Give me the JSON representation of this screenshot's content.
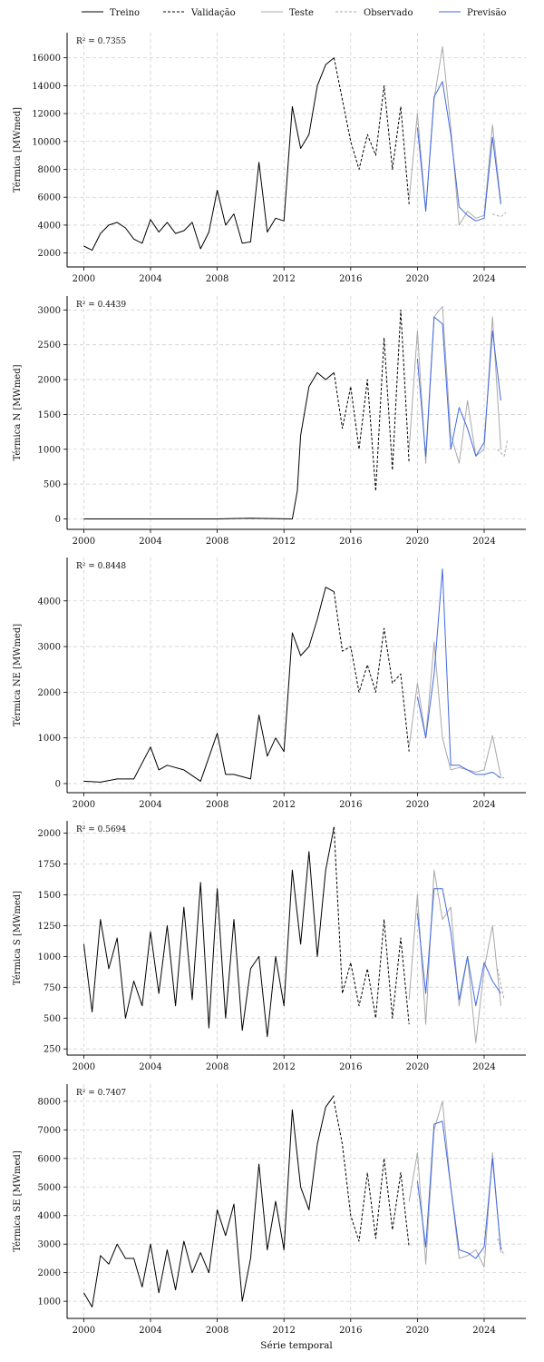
{
  "figure": {
    "xlabel": "Série temporal",
    "legend": [
      {
        "label": "Treino",
        "color": "#000000",
        "dash": "solid",
        "width": 1.0
      },
      {
        "label": "Validação",
        "color": "#000000",
        "dash": "dashed",
        "width": 1.0
      },
      {
        "label": "Teste",
        "color": "#a9a9a9",
        "dash": "solid",
        "width": 1.0
      },
      {
        "label": "Observado",
        "color": "#a9a9a9",
        "dash": "dashed",
        "width": 1.0
      },
      {
        "label": "Previsão",
        "color": "#4169e1",
        "dash": "solid",
        "width": 1.0
      }
    ],
    "legend_placement": "top-center",
    "grid": true,
    "xlim": [
      1999,
      2026.5
    ]
  },
  "chart_data": [
    {
      "type": "line",
      "ylabel": "Térmica [MWmed]",
      "annotation": "R² = 0.7355",
      "ylim": [
        1000,
        17800
      ],
      "yticks": [
        2000,
        4000,
        6000,
        8000,
        10000,
        12000,
        14000,
        16000
      ],
      "xticks": [
        2000,
        2004,
        2008,
        2012,
        2016,
        2020,
        2024
      ],
      "series": [
        {
          "name": "Treino",
          "x": [
            2000,
            2000.5,
            2001,
            2001.5,
            2002,
            2002.5,
            2003,
            2003.5,
            2004,
            2004.5,
            2005,
            2005.5,
            2006,
            2006.5,
            2007,
            2007.5,
            2008,
            2008.5,
            2009,
            2009.5,
            2010,
            2010.5,
            2011,
            2011.5,
            2012,
            2012.5,
            2013,
            2013.5,
            2014,
            2014.5,
            2015
          ],
          "y": [
            2500,
            2200,
            3400,
            4000,
            4200,
            3800,
            3000,
            2700,
            4400,
            3500,
            4200,
            3400,
            3600,
            4200,
            2300,
            3500,
            6500,
            4000,
            4800,
            2700,
            2800,
            8500,
            3500,
            4500,
            4300,
            12500,
            9500,
            10500,
            14000,
            15500,
            16000
          ]
        },
        {
          "name": "Validação",
          "x": [
            2015,
            2015.5,
            2016,
            2016.5,
            2017,
            2017.5,
            2018,
            2018.5,
            2019,
            2019.5
          ],
          "y": [
            16000,
            13000,
            10000,
            8000,
            10500,
            9000,
            14000,
            8000,
            12500,
            5500
          ]
        },
        {
          "name": "Teste",
          "x": [
            2019.5,
            2020,
            2020.5,
            2021,
            2021.5,
            2022,
            2022.5,
            2023,
            2023.5,
            2024,
            2024.5,
            2025
          ],
          "y": [
            5800,
            12000,
            5000,
            13000,
            16800,
            11000,
            4000,
            5000,
            4500,
            4700,
            11200,
            5600
          ]
        },
        {
          "name": "Observado",
          "x": [
            2024.5,
            2025,
            2025.3
          ],
          "y": [
            4800,
            4600,
            4900
          ]
        },
        {
          "name": "Previsão",
          "x": [
            2020,
            2020.5,
            2021,
            2021.5,
            2022,
            2022.5,
            2023,
            2023.5,
            2024,
            2024.5,
            2025
          ],
          "y": [
            11000,
            5000,
            13200,
            14300,
            10500,
            5300,
            4700,
            4300,
            4500,
            10300,
            5500
          ]
        }
      ]
    },
    {
      "type": "line",
      "ylabel": "Térmica N [MWmed]",
      "annotation": "R² = 0.4439",
      "ylim": [
        -150,
        3200
      ],
      "yticks": [
        0,
        500,
        1000,
        1500,
        2000,
        2500,
        3000
      ],
      "xticks": [
        2000,
        2004,
        2008,
        2012,
        2016,
        2020,
        2024
      ],
      "series": [
        {
          "name": "Treino",
          "x": [
            2000,
            2004,
            2008,
            2010,
            2012.5,
            2012.8,
            2013,
            2013.5,
            2014,
            2014.5,
            2015
          ],
          "y": [
            0,
            0,
            0,
            10,
            0,
            400,
            1200,
            1900,
            2100,
            2000,
            2100
          ]
        },
        {
          "name": "Validação",
          "x": [
            2015,
            2015.5,
            2016,
            2016.5,
            2017,
            2017.5,
            2018,
            2018.5,
            2019,
            2019.5
          ],
          "y": [
            2100,
            1300,
            1900,
            1000,
            2000,
            400,
            2600,
            700,
            3000,
            800
          ]
        },
        {
          "name": "Teste",
          "x": [
            2019.5,
            2020,
            2020.5,
            2021,
            2021.5,
            2022,
            2022.5,
            2023,
            2023.5,
            2024,
            2024.5,
            2025
          ],
          "y": [
            1000,
            2700,
            800,
            2900,
            3050,
            1200,
            800,
            1700,
            900,
            1000,
            2900,
            1000
          ]
        },
        {
          "name": "Observado",
          "x": [
            2024.8,
            2025.2,
            2025.4
          ],
          "y": [
            1000,
            900,
            1150
          ]
        },
        {
          "name": "Previsão",
          "x": [
            2020,
            2020.5,
            2021,
            2021.5,
            2022,
            2022.5,
            2023,
            2023.5,
            2024,
            2024.5,
            2025
          ],
          "y": [
            2300,
            900,
            2900,
            2800,
            1000,
            1600,
            1300,
            900,
            1100,
            2700,
            1700
          ]
        }
      ]
    },
    {
      "type": "line",
      "ylabel": "Térmica NE [MWmed]",
      "annotation": "R² = 0.8448",
      "ylim": [
        -200,
        4950
      ],
      "yticks": [
        0,
        1000,
        2000,
        3000,
        4000
      ],
      "xticks": [
        2000,
        2004,
        2008,
        2012,
        2016,
        2020,
        2024
      ],
      "series": [
        {
          "name": "Treino",
          "x": [
            2000,
            2001,
            2002,
            2003,
            2004,
            2004.5,
            2005,
            2006,
            2007,
            2008,
            2008.5,
            2009,
            2010,
            2010.5,
            2011,
            2011.5,
            2012,
            2012.5,
            2013,
            2013.5,
            2014,
            2014.5,
            2015
          ],
          "y": [
            50,
            30,
            100,
            100,
            800,
            300,
            400,
            300,
            50,
            1100,
            200,
            200,
            100,
            1500,
            600,
            1000,
            700,
            3300,
            2800,
            3000,
            3600,
            4300,
            4200
          ]
        },
        {
          "name": "Validação",
          "x": [
            2015,
            2015.5,
            2016,
            2016.5,
            2017,
            2017.5,
            2018,
            2018.5,
            2019,
            2019.5
          ],
          "y": [
            4200,
            2900,
            3000,
            2000,
            2600,
            2000,
            3400,
            2200,
            2400,
            700
          ]
        },
        {
          "name": "Teste",
          "x": [
            2019.5,
            2020,
            2020.5,
            2021,
            2021.5,
            2022,
            2022.5,
            2023,
            2023.5,
            2024,
            2024.5,
            2025
          ],
          "y": [
            800,
            2200,
            1000,
            3100,
            1000,
            300,
            350,
            300,
            250,
            300,
            1050,
            150
          ]
        },
        {
          "name": "Observado",
          "x": [
            2024.8,
            2025.2
          ],
          "y": [
            150,
            120
          ]
        },
        {
          "name": "Previsão",
          "x": [
            2020,
            2020.5,
            2021,
            2021.5,
            2022,
            2022.5,
            2023,
            2023.5,
            2024,
            2024.5,
            2025
          ],
          "y": [
            1900,
            1000,
            2400,
            4700,
            400,
            400,
            300,
            200,
            200,
            250,
            120
          ]
        }
      ]
    },
    {
      "type": "line",
      "ylabel": "Térmica S [MWmed]",
      "annotation": "R² = 0.5694",
      "ylim": [
        200,
        2100
      ],
      "yticks": [
        250,
        500,
        750,
        1000,
        1250,
        1500,
        1750,
        2000
      ],
      "xticks": [
        2000,
        2004,
        2008,
        2012,
        2016,
        2020,
        2024
      ],
      "series": [
        {
          "name": "Treino",
          "x": [
            2000,
            2000.5,
            2001,
            2001.5,
            2002,
            2002.5,
            2003,
            2003.5,
            2004,
            2004.5,
            2005,
            2005.5,
            2006,
            2006.5,
            2007,
            2007.5,
            2008,
            2008.5,
            2009,
            2009.5,
            2010,
            2010.5,
            2011,
            2011.5,
            2012,
            2012.5,
            2013,
            2013.5,
            2014,
            2014.5,
            2015
          ],
          "y": [
            1100,
            550,
            1300,
            900,
            1150,
            500,
            800,
            600,
            1200,
            700,
            1250,
            600,
            1400,
            650,
            1600,
            420,
            1550,
            500,
            1300,
            400,
            900,
            1000,
            350,
            1000,
            600,
            1700,
            1100,
            1850,
            1000,
            1700,
            2050
          ]
        },
        {
          "name": "Validação",
          "x": [
            2015,
            2015.5,
            2016,
            2016.5,
            2017,
            2017.5,
            2018,
            2018.5,
            2019,
            2019.5
          ],
          "y": [
            2050,
            700,
            950,
            600,
            900,
            500,
            1300,
            500,
            1150,
            450
          ]
        },
        {
          "name": "Teste",
          "x": [
            2019.5,
            2020,
            2020.5,
            2021,
            2021.5,
            2022,
            2022.5,
            2023,
            2023.5,
            2024,
            2024.5,
            2025
          ],
          "y": [
            650,
            1500,
            450,
            1700,
            1300,
            1400,
            600,
            1000,
            300,
            900,
            1250,
            600
          ]
        },
        {
          "name": "Observado",
          "x": [
            2024.8,
            2025.2
          ],
          "y": [
            900,
            650
          ]
        },
        {
          "name": "Previsão",
          "x": [
            2020,
            2020.5,
            2021,
            2021.5,
            2022,
            2022.5,
            2023,
            2023.5,
            2024,
            2024.5,
            2025
          ],
          "y": [
            1350,
            700,
            1550,
            1550,
            1200,
            650,
            1000,
            600,
            950,
            800,
            700
          ]
        }
      ]
    },
    {
      "type": "line",
      "ylabel": "Térmica SE [MWmed]",
      "annotation": "R² = 0.7407",
      "ylim": [
        400,
        8600
      ],
      "yticks": [
        1000,
        2000,
        3000,
        4000,
        5000,
        6000,
        7000,
        8000
      ],
      "xticks": [
        2000,
        2004,
        2008,
        2012,
        2016,
        2020,
        2024
      ],
      "xlabel": "Série temporal",
      "series": [
        {
          "name": "Treino",
          "x": [
            2000,
            2000.5,
            2001,
            2001.5,
            2002,
            2002.5,
            2003,
            2003.5,
            2004,
            2004.5,
            2005,
            2005.5,
            2006,
            2006.5,
            2007,
            2007.5,
            2008,
            2008.5,
            2009,
            2009.5,
            2010,
            2010.5,
            2011,
            2011.5,
            2012,
            2012.5,
            2013,
            2013.5,
            2014,
            2014.5,
            2015
          ],
          "y": [
            1300,
            800,
            2600,
            2300,
            3000,
            2500,
            2500,
            1500,
            3000,
            1300,
            2800,
            1400,
            3100,
            2000,
            2700,
            2000,
            4200,
            3300,
            4400,
            1000,
            2500,
            5800,
            2800,
            4500,
            2800,
            7700,
            5000,
            4200,
            6500,
            7800,
            8200
          ]
        },
        {
          "name": "Validação",
          "x": [
            2015,
            2015.5,
            2016,
            2016.5,
            2017,
            2017.5,
            2018,
            2018.5,
            2019,
            2019.5
          ],
          "y": [
            8000,
            6500,
            4000,
            3100,
            5500,
            3200,
            6000,
            3500,
            5500,
            2900
          ]
        },
        {
          "name": "Teste",
          "x": [
            2019.5,
            2020,
            2020.5,
            2021,
            2021.5,
            2022,
            2022.5,
            2023,
            2023.5,
            2024,
            2024.5,
            2025
          ],
          "y": [
            4500,
            6200,
            2300,
            7000,
            8000,
            5000,
            2500,
            2600,
            2800,
            2200,
            6200,
            2700
          ]
        },
        {
          "name": "Observado",
          "x": [
            2024.8,
            2025.2
          ],
          "y": [
            3200,
            2600
          ]
        },
        {
          "name": "Previsão",
          "x": [
            2020,
            2020.5,
            2021,
            2021.5,
            2022,
            2022.5,
            2023,
            2023.5,
            2024,
            2024.5,
            2025
          ],
          "y": [
            5200,
            2900,
            7200,
            7300,
            5000,
            2800,
            2700,
            2500,
            2900,
            6000,
            2800
          ]
        }
      ]
    }
  ]
}
